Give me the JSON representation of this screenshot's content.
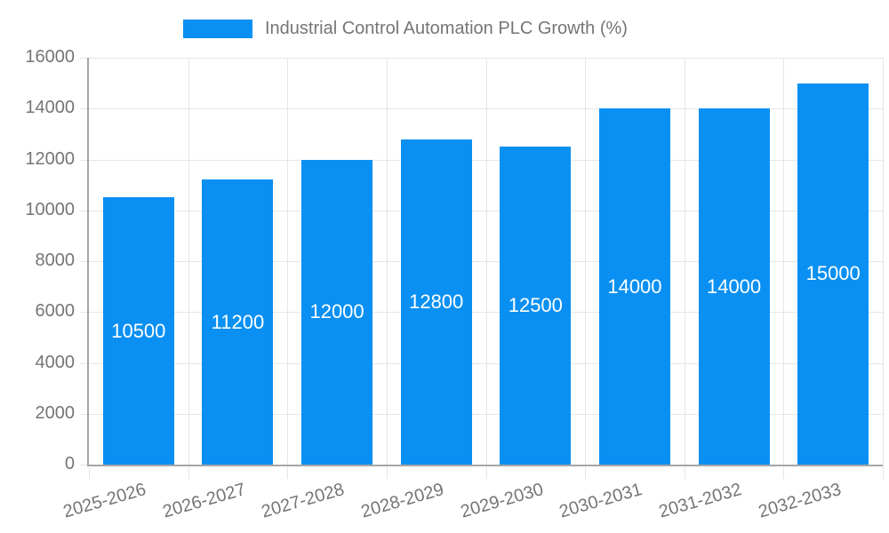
{
  "legend": {
    "label": "Industrial Control Automation PLC Growth (%)"
  },
  "chart_data": {
    "type": "bar",
    "title": "Industrial Control Automation PLC Growth (%)",
    "categories": [
      "2025-2026",
      "2026-2027",
      "2027-2028",
      "2028-2029",
      "2029-2030",
      "2030-2031",
      "2031-2032",
      "2032-2033"
    ],
    "values": [
      10500,
      11200,
      12000,
      12800,
      12500,
      14000,
      14000,
      15000
    ],
    "bar_value_labels": [
      "10500",
      "11200",
      "12000",
      "12800",
      "12500",
      "14000",
      "14000",
      "15000"
    ],
    "xlabel": "",
    "ylabel": "",
    "ylim": [
      0,
      16000
    ],
    "yticks": [
      0,
      2000,
      4000,
      6000,
      8000,
      10000,
      12000,
      14000,
      16000
    ],
    "grid": true,
    "legend_position": "top",
    "x_label_rotation_deg": -16,
    "colors": {
      "bar": "#0a90f2",
      "grid": "#e6e6e6",
      "axis": "#a6a6a6",
      "text": "#757575",
      "bar_label": "#ffffff",
      "background": "#ffffff"
    }
  }
}
